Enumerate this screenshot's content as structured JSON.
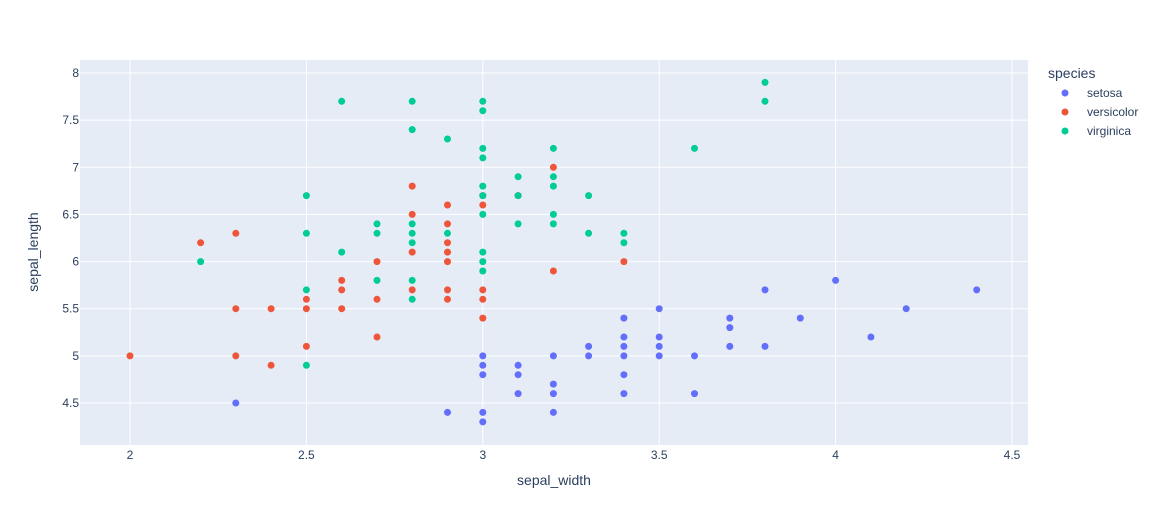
{
  "chart_data": {
    "type": "scatter",
    "title": "",
    "xlabel": "sepal_width",
    "ylabel": "sepal_length",
    "xlim": [
      1.86,
      4.54
    ],
    "ylim": [
      4.1,
      8.14
    ],
    "x_ticks": [
      2,
      2.5,
      3,
      3.5,
      4,
      4.5
    ],
    "x_tick_labels": [
      "2",
      "2.5",
      "3",
      "3.5",
      "4",
      "4.5"
    ],
    "y_ticks": [
      4.5,
      5,
      5.5,
      6,
      6.5,
      7,
      7.5,
      8
    ],
    "y_tick_labels": [
      "4.5",
      "5",
      "5.5",
      "6",
      "6.5",
      "7",
      "7.5",
      "8"
    ],
    "grid": true,
    "legend": {
      "title": "species",
      "position": "right-top"
    },
    "plot_bgcolor": "#E5ECF6",
    "series": [
      {
        "name": "setosa",
        "color": "#636EFA",
        "points": [
          [
            2.3,
            4.5
          ],
          [
            2.9,
            4.4
          ],
          [
            3.0,
            4.3
          ],
          [
            3.0,
            4.4
          ],
          [
            3.0,
            4.8
          ],
          [
            3.0,
            4.9
          ],
          [
            3.0,
            5.0
          ],
          [
            3.1,
            4.6
          ],
          [
            3.1,
            4.8
          ],
          [
            3.1,
            4.9
          ],
          [
            3.2,
            4.4
          ],
          [
            3.2,
            4.6
          ],
          [
            3.2,
            4.7
          ],
          [
            3.2,
            5.0
          ],
          [
            3.3,
            5.0
          ],
          [
            3.3,
            5.1
          ],
          [
            3.4,
            4.6
          ],
          [
            3.4,
            4.8
          ],
          [
            3.4,
            5.0
          ],
          [
            3.4,
            5.1
          ],
          [
            3.4,
            5.2
          ],
          [
            3.4,
            5.4
          ],
          [
            3.5,
            5.0
          ],
          [
            3.5,
            5.1
          ],
          [
            3.5,
            5.2
          ],
          [
            3.5,
            5.5
          ],
          [
            3.6,
            4.6
          ],
          [
            3.6,
            5.0
          ],
          [
            3.7,
            5.1
          ],
          [
            3.7,
            5.3
          ],
          [
            3.7,
            5.4
          ],
          [
            3.8,
            5.1
          ],
          [
            3.8,
            5.7
          ],
          [
            3.9,
            5.4
          ],
          [
            4.0,
            5.8
          ],
          [
            4.1,
            5.2
          ],
          [
            4.2,
            5.5
          ],
          [
            4.4,
            5.7
          ]
        ]
      },
      {
        "name": "versicolor",
        "color": "#EF553B",
        "points": [
          [
            2.0,
            5.0
          ],
          [
            2.2,
            6.2
          ],
          [
            2.3,
            5.0
          ],
          [
            2.3,
            5.5
          ],
          [
            2.3,
            6.3
          ],
          [
            2.4,
            4.9
          ],
          [
            2.4,
            5.5
          ],
          [
            2.5,
            5.1
          ],
          [
            2.5,
            5.5
          ],
          [
            2.5,
            5.6
          ],
          [
            2.6,
            5.5
          ],
          [
            2.6,
            5.7
          ],
          [
            2.6,
            5.8
          ],
          [
            2.7,
            5.2
          ],
          [
            2.7,
            5.6
          ],
          [
            2.7,
            6.0
          ],
          [
            2.8,
            5.7
          ],
          [
            2.8,
            6.1
          ],
          [
            2.8,
            6.5
          ],
          [
            2.8,
            6.8
          ],
          [
            2.9,
            5.6
          ],
          [
            2.9,
            5.7
          ],
          [
            2.9,
            6.0
          ],
          [
            2.9,
            6.1
          ],
          [
            2.9,
            6.2
          ],
          [
            2.9,
            6.4
          ],
          [
            2.9,
            6.6
          ],
          [
            3.0,
            5.4
          ],
          [
            3.0,
            5.6
          ],
          [
            3.0,
            5.7
          ],
          [
            3.0,
            6.6
          ],
          [
            3.0,
            6.7
          ],
          [
            3.1,
            6.7
          ],
          [
            3.2,
            5.9
          ],
          [
            3.2,
            7.0
          ],
          [
            3.4,
            6.0
          ]
        ]
      },
      {
        "name": "virginica",
        "color": "#00CC96",
        "points": [
          [
            2.2,
            6.0
          ],
          [
            2.5,
            4.9
          ],
          [
            2.5,
            5.7
          ],
          [
            2.5,
            6.3
          ],
          [
            2.5,
            6.7
          ],
          [
            2.6,
            6.1
          ],
          [
            2.6,
            7.7
          ],
          [
            2.7,
            5.8
          ],
          [
            2.7,
            6.3
          ],
          [
            2.7,
            6.4
          ],
          [
            2.8,
            5.6
          ],
          [
            2.8,
            5.8
          ],
          [
            2.8,
            6.2
          ],
          [
            2.8,
            6.3
          ],
          [
            2.8,
            6.4
          ],
          [
            2.8,
            7.4
          ],
          [
            2.8,
            7.7
          ],
          [
            2.9,
            6.3
          ],
          [
            2.9,
            7.3
          ],
          [
            3.0,
            5.9
          ],
          [
            3.0,
            6.0
          ],
          [
            3.0,
            6.1
          ],
          [
            3.0,
            6.5
          ],
          [
            3.0,
            6.7
          ],
          [
            3.0,
            6.8
          ],
          [
            3.0,
            7.1
          ],
          [
            3.0,
            7.2
          ],
          [
            3.0,
            7.6
          ],
          [
            3.0,
            7.7
          ],
          [
            3.1,
            6.4
          ],
          [
            3.1,
            6.7
          ],
          [
            3.1,
            6.9
          ],
          [
            3.2,
            6.4
          ],
          [
            3.2,
            6.5
          ],
          [
            3.2,
            6.8
          ],
          [
            3.2,
            6.9
          ],
          [
            3.2,
            7.2
          ],
          [
            3.3,
            6.3
          ],
          [
            3.3,
            6.7
          ],
          [
            3.4,
            6.2
          ],
          [
            3.4,
            6.3
          ],
          [
            3.6,
            7.2
          ],
          [
            3.8,
            7.7
          ],
          [
            3.8,
            7.9
          ]
        ]
      }
    ]
  }
}
